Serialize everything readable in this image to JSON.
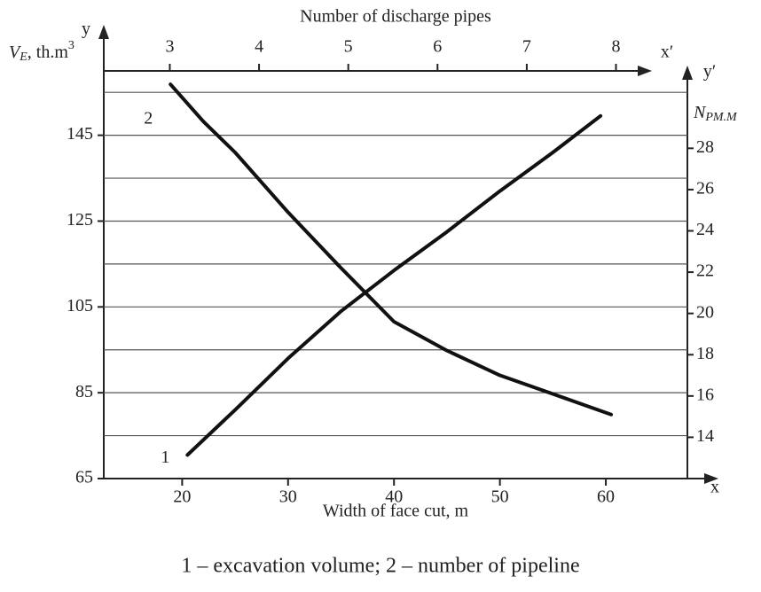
{
  "chart_data": {
    "type": "line",
    "title": "Number of discharge pipes",
    "xlabel": "Width of face cut, m",
    "caption": "1 – excavation volume; 2 – number of pipeline",
    "x_axis_name": "x",
    "x2_axis_name": "x′",
    "y_axis_name": "y",
    "y2_axis_name": "y′",
    "ylabel": {
      "main": "V",
      "sub": "E",
      "rest": ", th.m",
      "sup": "3"
    },
    "y2label": {
      "main": "N",
      "sub": "PM.M"
    },
    "xlim": [
      12.6,
      67.7
    ],
    "xticks": [
      20,
      30,
      40,
      50,
      60
    ],
    "x2lim": [
      2.26,
      8.8
    ],
    "x2ticks": [
      3,
      4,
      5,
      6,
      7,
      8
    ],
    "ylim": [
      65,
      160
    ],
    "yticks": [
      65,
      85,
      105,
      125,
      145
    ],
    "ygrid": [
      75,
      85,
      95,
      105,
      115,
      125,
      135,
      145,
      155
    ],
    "y2lim": [
      12,
      31.75
    ],
    "y2ticks": [
      14,
      16,
      18,
      20,
      22,
      24,
      26,
      28
    ],
    "series": [
      {
        "name": "1",
        "color": "#111111",
        "x": [
          20.5,
          25,
          30,
          35,
          40,
          45,
          50,
          55,
          59.5
        ],
        "values": [
          70.5,
          81,
          93,
          104,
          113.5,
          122.5,
          132,
          141,
          149.5
        ]
      },
      {
        "name": "2",
        "color": "#111111",
        "axis": "y2",
        "x": [
          18.9,
          22,
          25,
          30,
          35,
          40,
          45,
          50,
          55,
          60.5
        ],
        "values": [
          31.1,
          29.3,
          27.8,
          24.9,
          22.2,
          19.6,
          18.2,
          17.0,
          16.1,
          15.1
        ]
      }
    ]
  }
}
